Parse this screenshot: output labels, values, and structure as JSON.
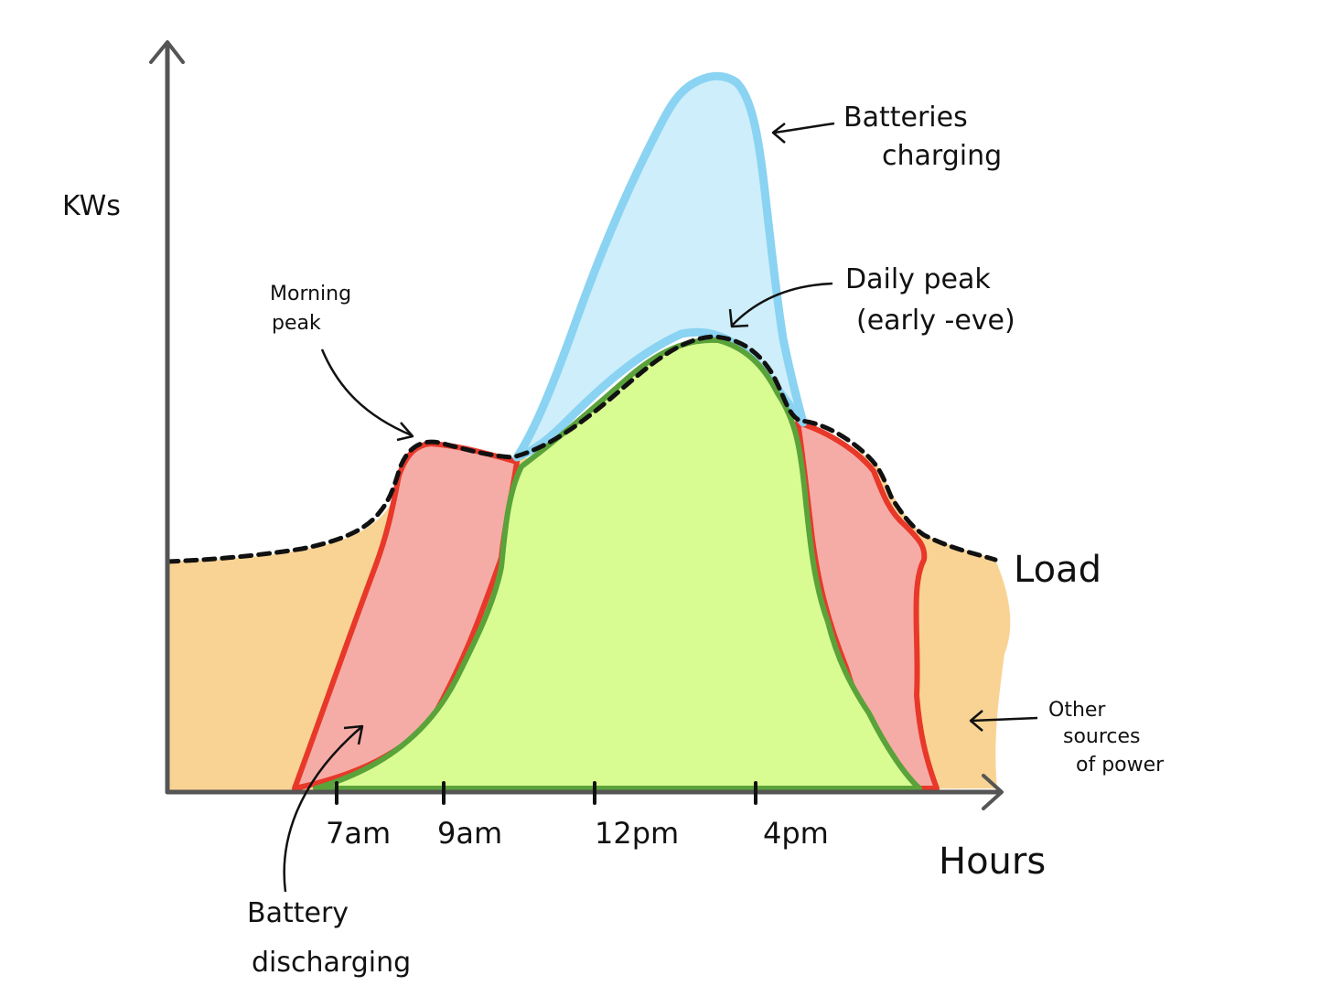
{
  "axes": {
    "y_label": "KWs",
    "x_label": "Hours"
  },
  "x_ticks": [
    "7am",
    "9am",
    "12pm",
    "4pm"
  ],
  "annotations": {
    "batteries_charging": [
      "Batteries",
      "charging"
    ],
    "daily_peak": [
      "Daily peak",
      "(early -eve)"
    ],
    "morning_peak": [
      "Morning",
      "peak"
    ],
    "load": "Load",
    "other_sources": [
      "Other",
      "sources",
      "of power"
    ],
    "battery_discharging": [
      "Battery",
      "discharging"
    ]
  },
  "colors": {
    "other_sources_fill": "#f9d393",
    "battery_discharge_fill": "#f6aca6",
    "battery_discharge_stroke": "#e8382a",
    "solar_fill": "#d8fb92",
    "solar_stroke": "#5aa23a",
    "battery_charge_fill": "#cdeefa",
    "battery_charge_stroke": "#8ad3f2",
    "load_line": "#111111",
    "axis": "#555555"
  }
}
